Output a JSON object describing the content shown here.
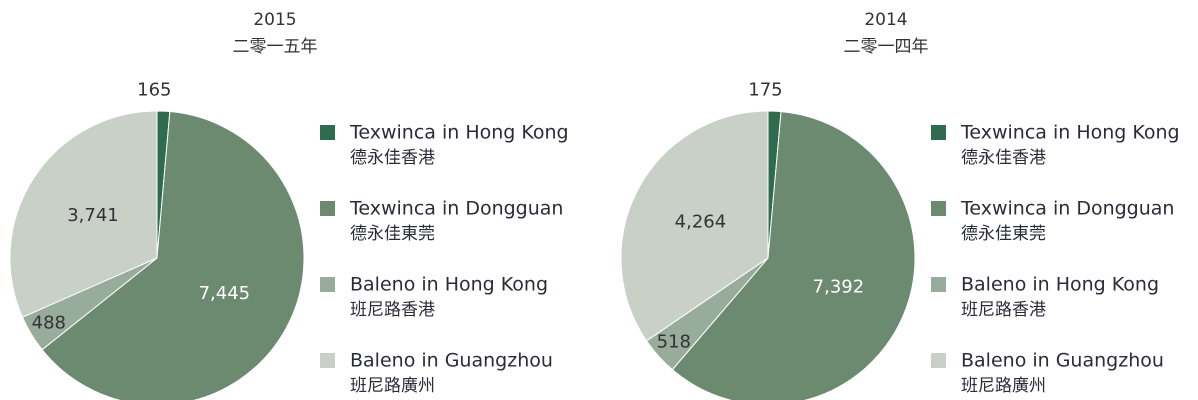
{
  "chart_data": [
    {
      "type": "pie",
      "title": "2015",
      "subtitle": "二零一五年",
      "categories": [
        "Texwinca in Hong Kong",
        "Texwinca in Dongguan",
        "Baleno in Hong Kong",
        "Baleno in Guangzhou"
      ],
      "categories_zh": [
        "德永佳香港",
        "德永佳東莞",
        "班尼路香港",
        "班尼路廣州"
      ],
      "values": [
        165,
        7445,
        488,
        3741
      ],
      "value_labels": [
        "165",
        "7,445",
        "488",
        "3,741"
      ],
      "colors": [
        "#2e6b4f",
        "#6b8a70",
        "#98ac9b",
        "#c8d0c8"
      ]
    },
    {
      "type": "pie",
      "title": "2014",
      "subtitle": "二零一四年",
      "categories": [
        "Texwinca in Hong Kong",
        "Texwinca in Dongguan",
        "Baleno in Hong Kong",
        "Baleno in Guangzhou"
      ],
      "categories_zh": [
        "德永佳香港",
        "德永佳東莞",
        "班尼路香港",
        "班尼路廣州"
      ],
      "values": [
        175,
        7392,
        518,
        4264
      ],
      "value_labels": [
        "175",
        "7,392",
        "518",
        "4,264"
      ],
      "colors": [
        "#2e6b4f",
        "#6b8a70",
        "#98ac9b",
        "#c8d0c8"
      ]
    }
  ]
}
